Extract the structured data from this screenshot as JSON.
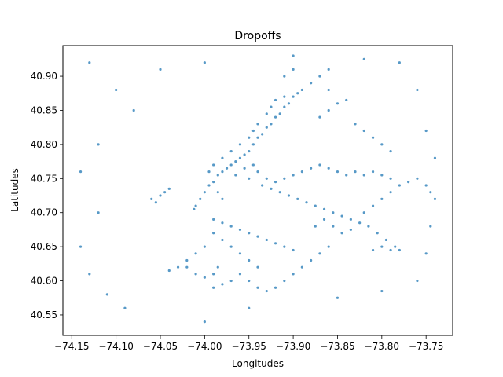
{
  "chart_data": {
    "type": "scatter",
    "title": "Dropoffs",
    "xlabel": "Longitudes",
    "ylabel": "Latitudes",
    "xlim": [
      -74.16,
      -73.72
    ],
    "ylim": [
      40.52,
      40.945
    ],
    "x_ticks": [
      -74.15,
      -74.1,
      -74.05,
      -74.0,
      -73.95,
      -73.9,
      -73.85,
      -73.8,
      -73.75
    ],
    "x_tick_labels": [
      "−74.15",
      "−74.10",
      "−74.05",
      "−74.00",
      "−73.95",
      "−73.90",
      "−73.85",
      "−73.80",
      "−73.75"
    ],
    "y_ticks": [
      40.55,
      40.6,
      40.65,
      40.7,
      40.75,
      40.8,
      40.85,
      40.9
    ],
    "y_tick_labels": [
      "40.55",
      "40.60",
      "40.65",
      "40.70",
      "40.75",
      "40.80",
      "40.85",
      "40.90"
    ],
    "grid": false,
    "legend": "none",
    "marker_color": "#1f77b4",
    "series": [
      {
        "points": [
          [
            -73.985,
            40.755
          ],
          [
            -73.98,
            40.76
          ],
          [
            -73.975,
            40.765
          ],
          [
            -73.97,
            40.77
          ],
          [
            -73.965,
            40.775
          ],
          [
            -73.96,
            40.78
          ],
          [
            -73.955,
            40.785
          ],
          [
            -73.95,
            40.79
          ],
          [
            -73.945,
            40.8
          ],
          [
            -73.94,
            40.81
          ],
          [
            -73.935,
            40.815
          ],
          [
            -73.93,
            40.825
          ],
          [
            -73.925,
            40.83
          ],
          [
            -73.92,
            40.84
          ],
          [
            -73.915,
            40.845
          ],
          [
            -73.91,
            40.855
          ],
          [
            -73.905,
            40.86
          ],
          [
            -73.9,
            40.87
          ],
          [
            -73.895,
            40.875
          ],
          [
            -73.89,
            40.88
          ],
          [
            -73.995,
            40.74
          ],
          [
            -74.0,
            40.73
          ],
          [
            -74.005,
            40.72
          ],
          [
            -74.01,
            40.71
          ],
          [
            -74.012,
            40.705
          ],
          [
            -73.99,
            40.745
          ],
          [
            -73.985,
            40.73
          ],
          [
            -73.98,
            40.72
          ],
          [
            -73.995,
            40.76
          ],
          [
            -73.99,
            40.77
          ],
          [
            -73.98,
            40.78
          ],
          [
            -73.97,
            40.79
          ],
          [
            -73.96,
            40.8
          ],
          [
            -73.95,
            40.81
          ],
          [
            -73.945,
            40.82
          ],
          [
            -73.94,
            40.83
          ],
          [
            -73.93,
            40.845
          ],
          [
            -73.925,
            40.855
          ],
          [
            -73.92,
            40.865
          ],
          [
            -73.91,
            40.87
          ],
          [
            -73.965,
            40.755
          ],
          [
            -73.955,
            40.765
          ],
          [
            -73.945,
            40.77
          ],
          [
            -73.94,
            40.76
          ],
          [
            -73.95,
            40.75
          ],
          [
            -73.93,
            40.75
          ],
          [
            -73.92,
            40.745
          ],
          [
            -73.91,
            40.75
          ],
          [
            -73.9,
            40.755
          ],
          [
            -73.89,
            40.76
          ],
          [
            -73.88,
            40.765
          ],
          [
            -73.87,
            40.77
          ],
          [
            -73.86,
            40.765
          ],
          [
            -73.85,
            40.76
          ],
          [
            -73.84,
            40.755
          ],
          [
            -73.83,
            40.76
          ],
          [
            -73.82,
            40.755
          ],
          [
            -73.81,
            40.76
          ],
          [
            -73.8,
            40.755
          ],
          [
            -73.79,
            40.75
          ],
          [
            -73.935,
            40.74
          ],
          [
            -73.925,
            40.735
          ],
          [
            -73.915,
            40.73
          ],
          [
            -73.905,
            40.725
          ],
          [
            -73.895,
            40.72
          ],
          [
            -73.885,
            40.715
          ],
          [
            -73.875,
            40.71
          ],
          [
            -73.865,
            40.705
          ],
          [
            -73.855,
            40.7
          ],
          [
            -73.845,
            40.695
          ],
          [
            -73.835,
            40.69
          ],
          [
            -73.825,
            40.685
          ],
          [
            -73.815,
            40.68
          ],
          [
            -73.805,
            40.67
          ],
          [
            -73.795,
            40.66
          ],
          [
            -73.785,
            40.65
          ],
          [
            -73.78,
            40.645
          ],
          [
            -73.79,
            40.645
          ],
          [
            -73.8,
            40.65
          ],
          [
            -73.81,
            40.645
          ],
          [
            -73.99,
            40.69
          ],
          [
            -73.98,
            40.685
          ],
          [
            -73.97,
            40.68
          ],
          [
            -73.96,
            40.675
          ],
          [
            -73.95,
            40.67
          ],
          [
            -73.94,
            40.665
          ],
          [
            -73.93,
            40.66
          ],
          [
            -73.92,
            40.655
          ],
          [
            -73.91,
            40.65
          ],
          [
            -73.9,
            40.645
          ],
          [
            -73.99,
            40.67
          ],
          [
            -73.98,
            40.66
          ],
          [
            -73.97,
            40.65
          ],
          [
            -73.96,
            40.64
          ],
          [
            -73.95,
            40.63
          ],
          [
            -73.94,
            40.62
          ],
          [
            -73.96,
            40.61
          ],
          [
            -73.97,
            40.6
          ],
          [
            -73.98,
            40.595
          ],
          [
            -73.99,
            40.59
          ],
          [
            -73.95,
            40.6
          ],
          [
            -73.94,
            40.59
          ],
          [
            -73.93,
            40.585
          ],
          [
            -73.92,
            40.59
          ],
          [
            -73.91,
            40.6
          ],
          [
            -73.9,
            40.61
          ],
          [
            -73.89,
            40.62
          ],
          [
            -73.88,
            40.63
          ],
          [
            -73.87,
            40.64
          ],
          [
            -73.86,
            40.65
          ],
          [
            -74.0,
            40.65
          ],
          [
            -74.01,
            40.64
          ],
          [
            -74.02,
            40.63
          ],
          [
            -74.03,
            40.62
          ],
          [
            -74.04,
            40.615
          ],
          [
            -74.02,
            40.62
          ],
          [
            -74.01,
            40.61
          ],
          [
            -74.0,
            40.605
          ],
          [
            -73.99,
            40.61
          ],
          [
            -73.985,
            40.62
          ],
          [
            -74.06,
            40.72
          ],
          [
            -74.05,
            40.725
          ],
          [
            -74.045,
            40.73
          ],
          [
            -74.04,
            40.735
          ],
          [
            -74.055,
            40.715
          ],
          [
            -73.875,
            40.68
          ],
          [
            -73.865,
            40.69
          ],
          [
            -73.855,
            40.68
          ],
          [
            -73.845,
            40.67
          ],
          [
            -73.835,
            40.675
          ],
          [
            -73.82,
            40.7
          ],
          [
            -73.81,
            40.71
          ],
          [
            -73.8,
            40.72
          ],
          [
            -73.79,
            40.73
          ],
          [
            -73.78,
            40.74
          ],
          [
            -73.77,
            40.745
          ],
          [
            -73.76,
            40.75
          ],
          [
            -73.75,
            40.74
          ],
          [
            -73.745,
            40.73
          ],
          [
            -73.74,
            40.72
          ],
          [
            -73.87,
            40.84
          ],
          [
            -73.86,
            40.85
          ],
          [
            -73.85,
            40.86
          ],
          [
            -73.84,
            40.865
          ],
          [
            -73.86,
            40.88
          ],
          [
            -73.88,
            40.89
          ],
          [
            -73.87,
            40.9
          ],
          [
            -73.86,
            40.91
          ],
          [
            -73.9,
            40.91
          ],
          [
            -73.91,
            40.9
          ],
          [
            -73.83,
            40.83
          ],
          [
            -73.82,
            40.82
          ],
          [
            -73.81,
            40.81
          ],
          [
            -73.8,
            40.8
          ],
          [
            -73.79,
            40.79
          ],
          [
            -74.13,
            40.92
          ],
          [
            -74.1,
            40.88
          ],
          [
            -74.08,
            40.85
          ],
          [
            -74.12,
            40.8
          ],
          [
            -74.14,
            40.76
          ],
          [
            -74.12,
            40.7
          ],
          [
            -74.14,
            40.65
          ],
          [
            -74.13,
            40.61
          ],
          [
            -74.11,
            40.58
          ],
          [
            -74.09,
            40.56
          ],
          [
            -74.0,
            40.54
          ],
          [
            -73.95,
            40.56
          ],
          [
            -73.85,
            40.575
          ],
          [
            -73.8,
            40.585
          ],
          [
            -73.76,
            40.6
          ],
          [
            -73.75,
            40.64
          ],
          [
            -73.745,
            40.68
          ],
          [
            -73.74,
            40.78
          ],
          [
            -73.75,
            40.82
          ],
          [
            -73.76,
            40.88
          ],
          [
            -73.78,
            40.92
          ],
          [
            -73.82,
            40.925
          ],
          [
            -73.9,
            40.93
          ],
          [
            -74.0,
            40.92
          ],
          [
            -74.05,
            40.91
          ]
        ]
      }
    ]
  }
}
